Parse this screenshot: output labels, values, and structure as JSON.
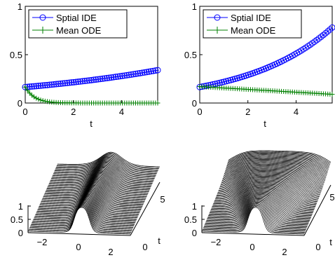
{
  "chart_data": [
    {
      "type": "line",
      "panel": "top-left",
      "xlabel": "t",
      "ylabel": "",
      "xlim": [
        0,
        5.5
      ],
      "ylim": [
        0,
        1
      ],
      "xticks": [
        "0",
        "2",
        "4"
      ],
      "yticks": [
        "0",
        "0.5",
        "1"
      ],
      "legend": "top-left",
      "series": [
        {
          "name": "Sptial IDE",
          "color": "#0000ff",
          "marker": "circle",
          "model": "exp",
          "y0": 0.165,
          "y_end": 0.34
        },
        {
          "name": "Mean ODE",
          "color": "#008000",
          "marker": "plus",
          "model": "decay",
          "y0": 0.165,
          "rate": 2.6
        }
      ]
    },
    {
      "type": "line",
      "panel": "top-right",
      "xlabel": "t",
      "ylabel": "",
      "xlim": [
        0,
        5.5
      ],
      "ylim": [
        0,
        1
      ],
      "xticks": [
        "0",
        "2",
        "4"
      ],
      "yticks": [
        "0",
        "0.5",
        "1"
      ],
      "legend": "top-left",
      "series": [
        {
          "name": "Sptial IDE",
          "color": "#0000ff",
          "marker": "circle",
          "model": "exp",
          "y0": 0.165,
          "y_end": 0.78
        },
        {
          "name": "Mean ODE",
          "color": "#008000",
          "marker": "plus",
          "model": "linear",
          "y0": 0.17,
          "y_end": 0.09
        }
      ]
    },
    {
      "type": "surface",
      "panel": "bottom-left",
      "xlabel": "",
      "ylabel": "t",
      "x_ticks": [
        "−2",
        "0",
        "2"
      ],
      "t_ticks": [
        "0",
        "5"
      ],
      "z_ticks": [
        "0",
        "0.5",
        "1"
      ],
      "description": "waterfall of density profiles: rectangular block near x≈0 persists over t"
    },
    {
      "type": "surface",
      "panel": "bottom-right",
      "xlabel": "",
      "ylabel": "t",
      "x_ticks": [
        "−2",
        "0",
        "2"
      ],
      "t_ticks": [
        "0",
        "5"
      ],
      "z_ticks": [
        "0",
        "0.5",
        "1"
      ],
      "description": "waterfall of density profiles: block spreads to fill domain over t"
    }
  ]
}
